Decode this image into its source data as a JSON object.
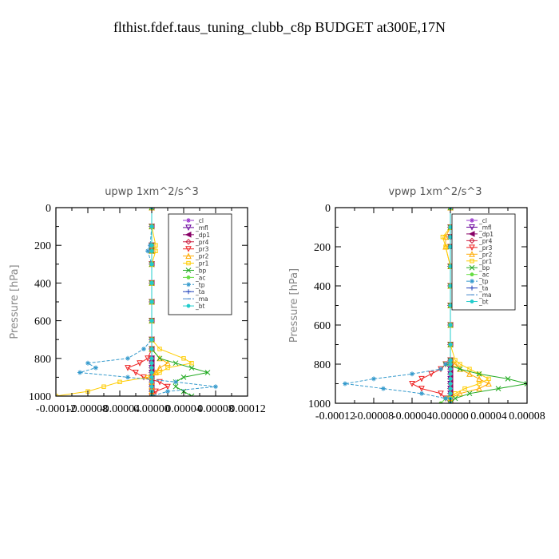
{
  "figure_title": "flthist.fdef.taus_tuning_clubb_c8p  BUDGET at300E,17N",
  "legend_labels": [
    "_cl",
    "_mfl",
    "_dp1",
    "_pr4",
    "_pr3",
    "_pr2",
    "_pr1",
    "_bp",
    "_ac",
    "_tp",
    "_ta",
    "_ma",
    "_bt"
  ],
  "chart_data": [
    {
      "type": "line",
      "title": "upwp   1xm^2/s^3",
      "ylabel": "Pressure  [hPa]",
      "xlabel": "",
      "xlim": [
        -0.00012,
        0.00012
      ],
      "ylim": [
        1000,
        0
      ],
      "yticks": [
        0,
        200,
        400,
        600,
        800,
        1000
      ],
      "xtick_labels": [
        "-0.00012",
        "-0.00008",
        "-0.00004",
        "0.00000",
        "0.00004",
        "0.00008",
        "0.00012"
      ],
      "ytick_labels": [
        "0",
        "200",
        "400",
        "600",
        "800",
        "1000"
      ],
      "grid": false,
      "legend_position": "top-right",
      "pressure": [
        0,
        100,
        200,
        230,
        300,
        400,
        500,
        600,
        700,
        750,
        800,
        825,
        850,
        875,
        900,
        925,
        950,
        975,
        1000
      ],
      "series": [
        {
          "name": "_cl",
          "color": "#9933cc",
          "values": [
            0,
            0,
            0,
            0,
            0,
            0,
            0,
            0,
            0,
            0,
            0,
            0,
            0,
            0,
            0,
            0,
            0,
            0,
            0
          ]
        },
        {
          "name": "_mfl",
          "color": "#660099",
          "values": [
            0,
            0,
            0,
            0,
            0,
            0,
            0,
            0,
            0,
            0,
            0,
            0,
            0,
            0,
            0,
            0,
            0,
            0,
            0
          ]
        },
        {
          "name": "_dp1",
          "color": "#880066",
          "values": [
            0,
            0,
            0,
            0,
            0,
            0,
            0,
            0,
            0,
            0,
            0,
            0,
            0,
            0,
            0,
            0,
            0,
            0,
            0
          ]
        },
        {
          "name": "_pr4",
          "color": "#cc2244",
          "values": [
            0,
            0,
            0,
            0,
            0,
            0,
            0,
            0,
            0,
            0,
            0,
            0,
            0,
            0,
            0,
            0,
            0,
            0,
            0
          ]
        },
        {
          "name": "_pr3",
          "color": "#ee2222",
          "values": [
            0,
            0,
            0,
            0,
            0,
            0,
            0,
            0,
            0,
            0,
            -5e-06,
            -1.5e-05,
            -3e-05,
            -2e-05,
            -1e-05,
            1e-05,
            2e-05,
            5e-06,
            0
          ]
        },
        {
          "name": "_pr2",
          "color": "#ffaa00",
          "values": [
            0,
            0,
            0,
            0,
            0,
            0,
            0,
            0,
            0,
            0,
            1e-05,
            2e-05,
            1e-05,
            5e-06,
            0,
            0,
            0,
            0,
            0
          ]
        },
        {
          "name": "_pr1",
          "color": "#ffcc00",
          "values": [
            0,
            0,
            5e-06,
            5e-06,
            0,
            0,
            0,
            0,
            0,
            1e-05,
            4e-05,
            5e-05,
            2e-05,
            1e-05,
            -5e-06,
            -4e-05,
            -6e-05,
            -8e-05,
            -0.00012
          ]
        },
        {
          "name": "_bp",
          "color": "#22aa22",
          "values": [
            0,
            0,
            0,
            0,
            0,
            0,
            0,
            0,
            0,
            0,
            1e-05,
            3e-05,
            5e-05,
            7e-05,
            4e-05,
            3e-05,
            3e-05,
            4e-05,
            5e-05
          ]
        },
        {
          "name": "_ac",
          "color": "#66dd44",
          "values": [
            0,
            0,
            0,
            0,
            0,
            0,
            0,
            0,
            0,
            0,
            0,
            0,
            0,
            0,
            0,
            0,
            0,
            0,
            0
          ]
        },
        {
          "name": "_tp",
          "color": "#3399cc",
          "values": [
            0,
            0,
            -2e-06,
            -5e-06,
            0,
            0,
            0,
            0,
            0,
            -1e-05,
            -3e-05,
            -8e-05,
            -7e-05,
            -9e-05,
            -3e-05,
            3e-05,
            8e-05,
            2e-05,
            0
          ]
        },
        {
          "name": "_ta",
          "color": "#2244bb",
          "values": [
            0,
            0,
            0,
            0,
            0,
            0,
            0,
            0,
            0,
            0,
            0,
            0,
            0,
            0,
            0,
            0,
            0,
            0,
            0
          ]
        },
        {
          "name": "_ma",
          "color": "#4488cc",
          "values": [
            0,
            0,
            0,
            0,
            0,
            0,
            0,
            0,
            0,
            0,
            0,
            0,
            0,
            0,
            0,
            0,
            0,
            0,
            0
          ]
        },
        {
          "name": "_bt",
          "color": "#22cccc",
          "values": [
            0,
            0,
            0,
            0,
            0,
            0,
            0,
            0,
            0,
            0,
            0,
            0,
            0,
            0,
            0,
            0,
            0,
            0,
            0
          ]
        }
      ]
    },
    {
      "type": "line",
      "title": "vpwp   1xm^2/s^3",
      "ylabel": "Pressure  [hPa]",
      "xlabel": "",
      "xlim": [
        -0.00012,
        8e-05
      ],
      "ylim": [
        1000,
        0
      ],
      "yticks": [
        0,
        200,
        400,
        600,
        800,
        1000
      ],
      "xtick_labels": [
        "-0.00012",
        "-0.00008",
        "-0.00004",
        "0.00000",
        "0.00004",
        "0.00008"
      ],
      "ytick_labels": [
        "0",
        "200",
        "400",
        "600",
        "800",
        "1000"
      ],
      "grid": false,
      "legend_position": "top-right",
      "pressure": [
        0,
        100,
        150,
        200,
        300,
        400,
        500,
        600,
        700,
        780,
        800,
        825,
        850,
        875,
        900,
        925,
        950,
        975,
        1000
      ],
      "series": [
        {
          "name": "_cl",
          "color": "#9933cc",
          "values": [
            0,
            0,
            0,
            0,
            0,
            0,
            0,
            0,
            0,
            0,
            0,
            0,
            0,
            0,
            0,
            0,
            0,
            0,
            0
          ]
        },
        {
          "name": "_mfl",
          "color": "#660099",
          "values": [
            0,
            0,
            0,
            0,
            0,
            0,
            0,
            0,
            0,
            0,
            0,
            0,
            0,
            0,
            0,
            0,
            0,
            0,
            0
          ]
        },
        {
          "name": "_dp1",
          "color": "#880066",
          "values": [
            0,
            0,
            0,
            0,
            0,
            0,
            0,
            0,
            0,
            0,
            0,
            0,
            0,
            0,
            0,
            0,
            0,
            0,
            0
          ]
        },
        {
          "name": "_pr4",
          "color": "#cc2244",
          "values": [
            0,
            0,
            0,
            0,
            0,
            0,
            0,
            0,
            0,
            0,
            0,
            0,
            0,
            0,
            0,
            0,
            0,
            0,
            0
          ]
        },
        {
          "name": "_pr3",
          "color": "#ee2222",
          "values": [
            0,
            0,
            0,
            0,
            0,
            0,
            0,
            0,
            0,
            0,
            -5e-06,
            -1e-05,
            -2e-05,
            -3e-05,
            -4e-05,
            -3e-05,
            -1e-05,
            -5e-06,
            0
          ]
        },
        {
          "name": "_pr2",
          "color": "#ffaa00",
          "values": [
            0,
            0,
            -5e-06,
            -5e-06,
            0,
            0,
            0,
            0,
            0,
            0,
            5e-06,
            1e-05,
            2e-05,
            3e-05,
            4e-05,
            3e-05,
            1e-05,
            0,
            0
          ]
        },
        {
          "name": "_pr1",
          "color": "#ffcc00",
          "values": [
            0,
            0,
            -8e-06,
            -5e-06,
            0,
            0,
            0,
            0,
            0,
            5e-06,
            1e-05,
            2e-05,
            3e-05,
            4e-05,
            3e-05,
            1.5e-05,
            5e-06,
            0,
            0
          ]
        },
        {
          "name": "_bp",
          "color": "#22aa22",
          "values": [
            0,
            0,
            0,
            0,
            0,
            0,
            0,
            0,
            0,
            0,
            -5e-06,
            1e-05,
            3e-05,
            6e-05,
            8e-05,
            5e-05,
            2e-05,
            5e-06,
            0
          ]
        },
        {
          "name": "_ac",
          "color": "#66dd44",
          "values": [
            0,
            0,
            0,
            0,
            0,
            0,
            0,
            0,
            0,
            0,
            0,
            0,
            0,
            0,
            0,
            0,
            0,
            -5e-06,
            -1e-05
          ]
        },
        {
          "name": "_tp",
          "color": "#3399cc",
          "values": [
            0,
            0,
            0,
            0,
            0,
            0,
            0,
            0,
            0,
            0,
            -5e-06,
            -1e-05,
            -4e-05,
            -8e-05,
            -0.00011,
            -7e-05,
            -3e-05,
            -5e-06,
            0
          ]
        },
        {
          "name": "_ta",
          "color": "#2244bb",
          "values": [
            0,
            0,
            0,
            0,
            0,
            0,
            0,
            0,
            0,
            0,
            0,
            0,
            0,
            0,
            0,
            0,
            0,
            0,
            0
          ]
        },
        {
          "name": "_ma",
          "color": "#4488cc",
          "values": [
            0,
            0,
            0,
            0,
            0,
            0,
            0,
            0,
            0,
            0,
            0,
            0,
            0,
            0,
            0,
            0,
            0,
            0,
            0
          ]
        },
        {
          "name": "_bt",
          "color": "#22cccc",
          "values": [
            0,
            0,
            0,
            0,
            0,
            0,
            0,
            0,
            0,
            0,
            0,
            0,
            0,
            0,
            0,
            0,
            0,
            0,
            0
          ]
        }
      ]
    }
  ]
}
